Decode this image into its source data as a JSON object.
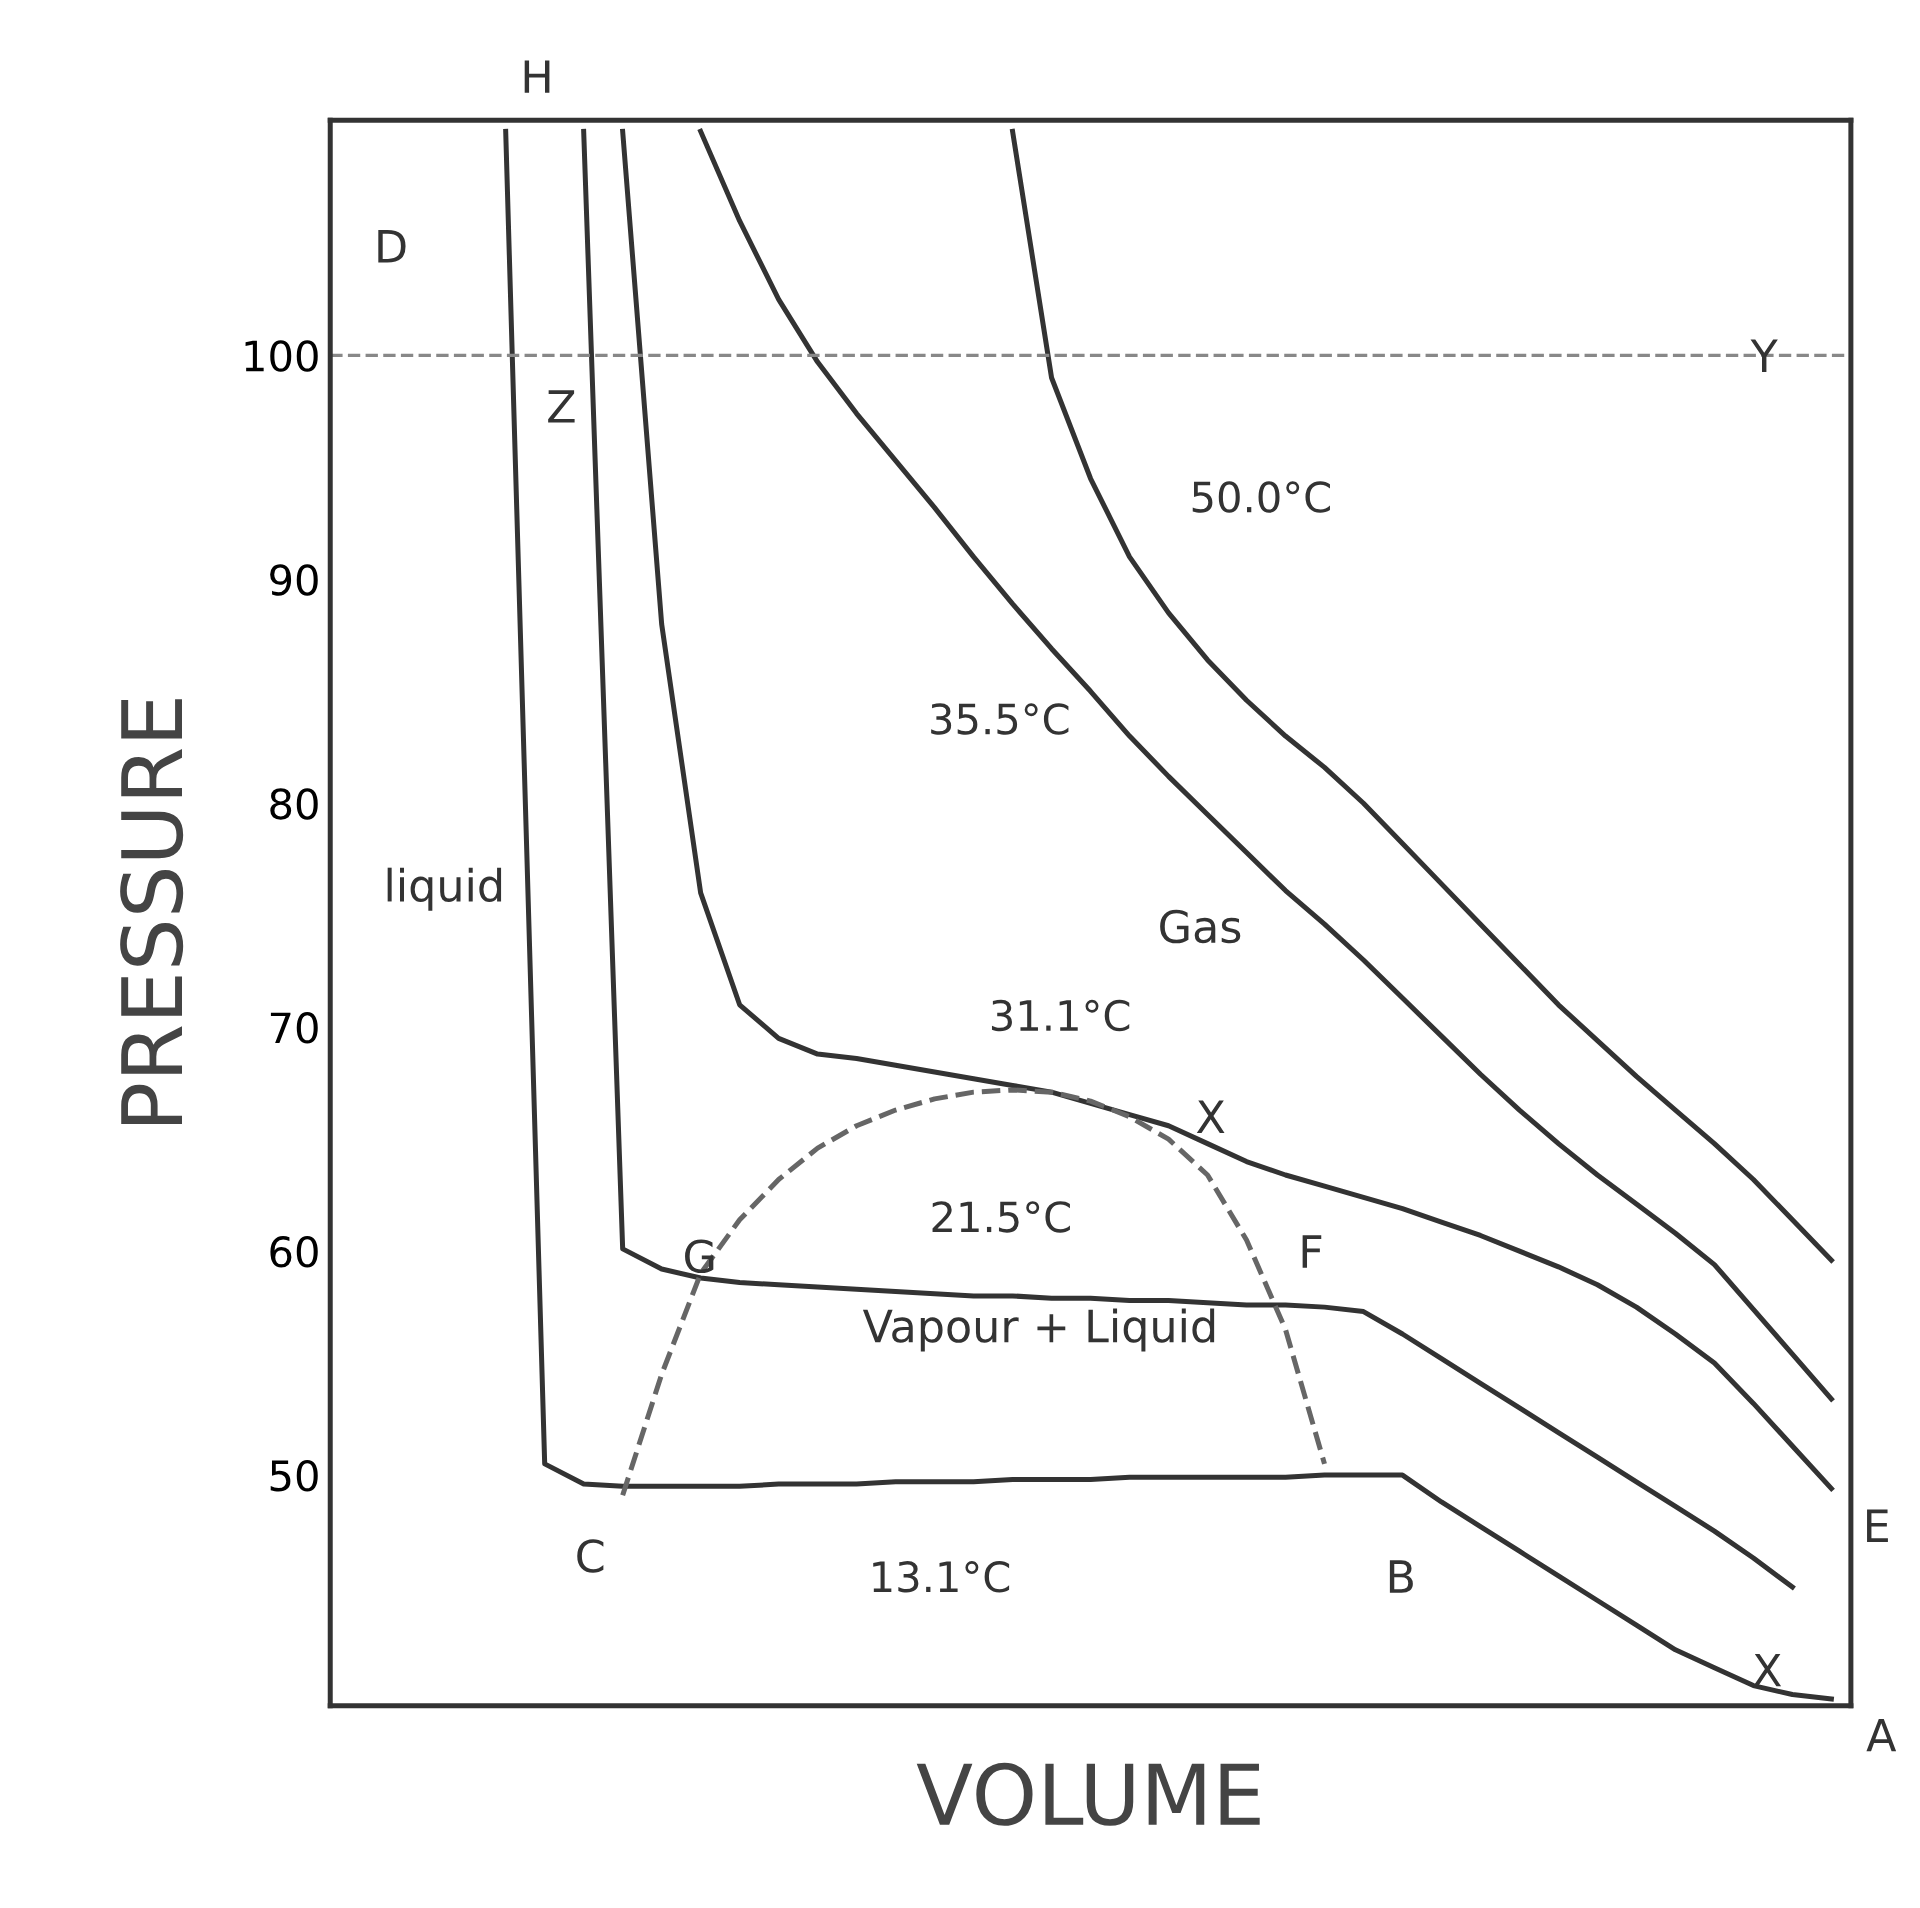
{
  "chart_data": {
    "type": "line",
    "xlabel": "VOLUME",
    "ylabel": "PRESSURE",
    "categories": [
      null,
      null,
      null,
      null,
      null,
      null,
      null,
      null,
      null,
      null,
      null,
      null,
      null,
      null,
      null,
      null,
      null,
      null,
      null,
      null,
      null,
      null,
      null,
      null,
      null,
      null,
      null,
      null,
      null,
      null,
      null,
      null,
      null,
      null,
      null,
      null,
      null,
      null,
      null
    ],
    "series": [
      {
        "name": "50.0°C",
        "color": "#333333",
        "values": [
          null,
          null,
          null,
          null,
          null,
          null,
          null,
          null,
          null,
          null,
          null,
          null,
          null,
          null,
          null,
          null,
          null,
          110,
          99,
          94.5,
          91,
          88.5,
          86.4,
          84.6,
          83,
          81.6,
          80,
          78.2,
          76.4,
          74.6,
          72.8,
          71,
          69.4,
          67.8,
          66.3,
          64.8,
          63.2,
          61.4,
          59.6
        ]
      },
      {
        "name": "35.5°C",
        "color": "#333333",
        "values": [
          null,
          null,
          null,
          null,
          null,
          null,
          null,
          null,
          null,
          110,
          106,
          102.5,
          99.7,
          97.4,
          95.3,
          93.2,
          91,
          88.9,
          86.9,
          85,
          83,
          81.2,
          79.5,
          77.8,
          76.1,
          74.6,
          73,
          71.3,
          69.6,
          67.9,
          66.3,
          64.8,
          63.4,
          62.1,
          60.8,
          59.4,
          57.4,
          55.4,
          53.4
        ]
      },
      {
        "name": "31.1°C",
        "color": "#333333",
        "values": [
          null,
          null,
          null,
          null,
          null,
          null,
          null,
          110,
          88,
          76,
          71,
          69.5,
          68.8,
          68.6,
          68.3,
          68,
          67.7,
          67.4,
          67.1,
          66.6,
          66.1,
          65.6,
          64.8,
          64,
          63.4,
          62.9,
          62.4,
          61.9,
          61.3,
          60.7,
          60,
          59.3,
          58.5,
          57.5,
          56.3,
          55,
          53.2,
          51.3,
          49.4
        ]
      },
      {
        "name": "21.5°C",
        "color": "#333333",
        "values": [
          null,
          null,
          null,
          null,
          null,
          null,
          110,
          60.1,
          59.2,
          58.8,
          58.6,
          58.5,
          58.4,
          58.3,
          58.2,
          58.1,
          58,
          58,
          57.9,
          57.9,
          57.8,
          57.8,
          57.7,
          57.6,
          57.6,
          57.5,
          57.3,
          56.3,
          55.2,
          54.1,
          53,
          51.9,
          50.8,
          49.7,
          48.6,
          47.5,
          46.3,
          45,
          null
        ]
      },
      {
        "name": "13.1°C",
        "color": "#333333",
        "values": [
          null,
          null,
          null,
          null,
          110,
          50.5,
          49.6,
          49.5,
          49.5,
          49.5,
          49.5,
          49.6,
          49.6,
          49.6,
          49.7,
          49.7,
          49.7,
          49.8,
          49.8,
          49.8,
          49.9,
          49.9,
          49.9,
          49.9,
          49.9,
          50,
          50,
          50,
          48.8,
          47.7,
          46.6,
          45.5,
          44.4,
          43.3,
          42.2,
          41.4,
          40.6,
          40.2,
          40
        ]
      },
      {
        "color": "#666666",
        "line_style": "dashed",
        "values": [
          null,
          null,
          null,
          null,
          null,
          null,
          null,
          49.1,
          54.5,
          59,
          61.4,
          63.2,
          64.6,
          65.6,
          66.3,
          66.8,
          67.1,
          67.2,
          67.1,
          66.7,
          66,
          65,
          63.4,
          60.5,
          56.5,
          50.5,
          null,
          null,
          null,
          null,
          null,
          null,
          null,
          null,
          null,
          null,
          null,
          null,
          null
        ]
      }
    ],
    "ylim": [
      39.7,
      110.5
    ],
    "yticks": [
      50,
      60,
      70,
      80,
      90,
      100
    ],
    "tick_labels": "y",
    "grid": false,
    "legend": false,
    "ref_lines": [
      {
        "axis": "y",
        "value": 100,
        "color": "#888888",
        "line_style": "dashed"
      }
    ],
    "annotations": [
      "H",
      "D",
      "Z",
      "Y",
      "liquid",
      "Gas",
      "X",
      "G",
      "F",
      "Vapour + Liquid",
      "C",
      "B",
      "E",
      "X",
      "A"
    ]
  }
}
